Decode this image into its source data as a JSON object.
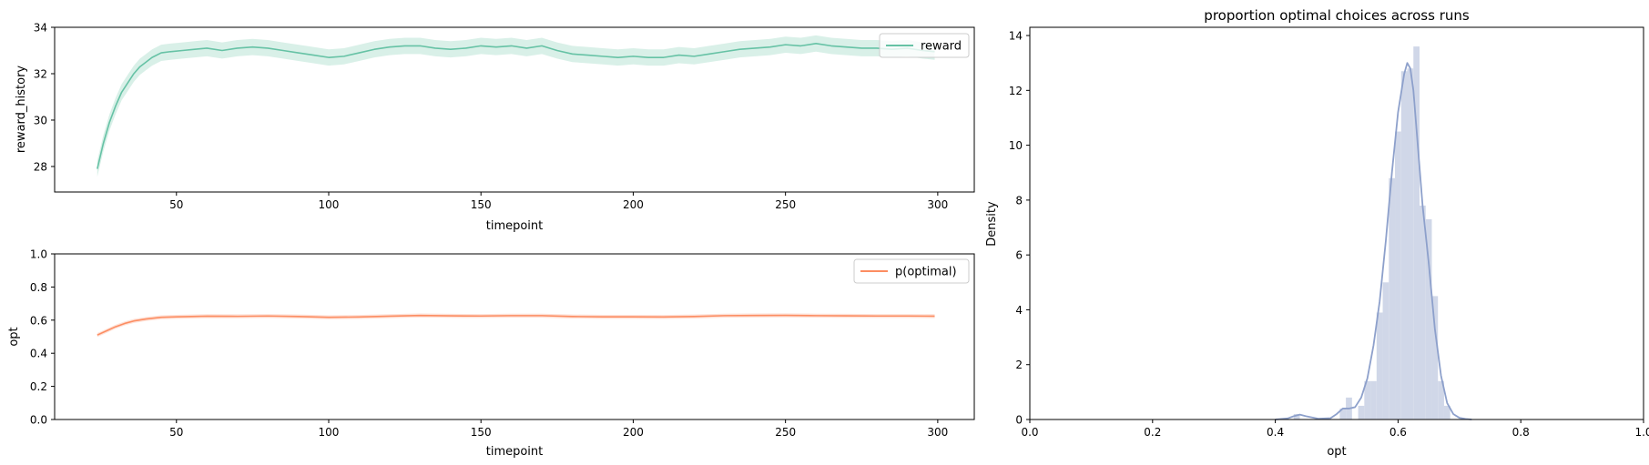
{
  "chart_data": [
    {
      "type": "line",
      "title": "",
      "xlabel": "timepoint",
      "ylabel": "reward_history",
      "xlim": [
        10,
        312
      ],
      "ylim": [
        26.9,
        34
      ],
      "xticks": [
        50,
        100,
        150,
        200,
        250,
        300
      ],
      "yticks": [
        28,
        30,
        32,
        34
      ],
      "legend_position": "upper right",
      "series": [
        {
          "name": "reward",
          "color": "#66c2a5",
          "band": 0.35,
          "x": [
            24,
            26,
            28,
            30,
            32,
            34,
            36,
            38,
            40,
            42,
            45,
            48,
            52,
            56,
            60,
            65,
            70,
            75,
            80,
            85,
            90,
            95,
            100,
            105,
            110,
            115,
            120,
            125,
            130,
            135,
            140,
            145,
            150,
            155,
            160,
            165,
            170,
            175,
            180,
            185,
            190,
            195,
            200,
            205,
            210,
            215,
            220,
            225,
            230,
            235,
            240,
            245,
            250,
            255,
            260,
            265,
            270,
            275,
            280,
            285,
            290,
            295,
            299
          ],
          "y": [
            27.9,
            29.0,
            29.9,
            30.6,
            31.2,
            31.6,
            32.0,
            32.3,
            32.5,
            32.7,
            32.9,
            32.95,
            33.0,
            33.05,
            33.1,
            33.0,
            33.1,
            33.15,
            33.1,
            33.0,
            32.9,
            32.8,
            32.7,
            32.75,
            32.9,
            33.05,
            33.15,
            33.2,
            33.2,
            33.1,
            33.05,
            33.1,
            33.2,
            33.15,
            33.2,
            33.1,
            33.2,
            33.0,
            32.85,
            32.8,
            32.75,
            32.7,
            32.75,
            32.7,
            32.7,
            32.8,
            32.75,
            32.85,
            32.95,
            33.05,
            33.1,
            33.15,
            33.25,
            33.2,
            33.3,
            33.2,
            33.15,
            33.1,
            33.1,
            33.05,
            33.1,
            33.0,
            32.95
          ]
        }
      ]
    },
    {
      "type": "line",
      "title": "",
      "xlabel": "timepoint",
      "ylabel": "opt",
      "xlim": [
        10,
        312
      ],
      "ylim": [
        0,
        1
      ],
      "xticks": [
        50,
        100,
        150,
        200,
        250,
        300
      ],
      "yticks": [
        0.0,
        0.2,
        0.4,
        0.6,
        0.8,
        1.0
      ],
      "ytick_labels": [
        "0.0",
        "0.2",
        "0.4",
        "0.6",
        "0.8",
        "1.0"
      ],
      "legend_position": "upper right",
      "series": [
        {
          "name": "p(optimal)",
          "color": "#fc8d62",
          "band": 0.012,
          "x": [
            24,
            27,
            30,
            33,
            36,
            40,
            45,
            50,
            55,
            60,
            70,
            80,
            90,
            100,
            110,
            120,
            130,
            140,
            150,
            160,
            170,
            180,
            190,
            200,
            210,
            220,
            230,
            240,
            250,
            260,
            270,
            280,
            290,
            299
          ],
          "y": [
            0.51,
            0.535,
            0.56,
            0.58,
            0.595,
            0.607,
            0.617,
            0.62,
            0.622,
            0.624,
            0.623,
            0.625,
            0.622,
            0.617,
            0.619,
            0.624,
            0.628,
            0.626,
            0.625,
            0.627,
            0.627,
            0.622,
            0.62,
            0.62,
            0.619,
            0.622,
            0.627,
            0.628,
            0.629,
            0.627,
            0.626,
            0.625,
            0.625,
            0.624
          ]
        }
      ]
    },
    {
      "type": "bar",
      "title": "proportion optimal choices across runs",
      "xlabel": "opt",
      "ylabel": "Density",
      "xlim": [
        0,
        1
      ],
      "ylim": [
        0,
        14.3
      ],
      "xticks": [
        0.0,
        0.2,
        0.4,
        0.6,
        0.8,
        1.0
      ],
      "xtick_labels": [
        "0.0",
        "0.2",
        "0.4",
        "0.6",
        "0.8",
        "1.0"
      ],
      "yticks": [
        0,
        2,
        4,
        6,
        8,
        10,
        12,
        14
      ],
      "bar_color": "#d0d7e8",
      "kde_color": "#8da0cb",
      "bins": [
        {
          "x0": 0.43,
          "x1": 0.44,
          "value": 0.2
        },
        {
          "x0": 0.505,
          "x1": 0.515,
          "value": 0.4
        },
        {
          "x0": 0.515,
          "x1": 0.525,
          "value": 0.8
        },
        {
          "x0": 0.535,
          "x1": 0.545,
          "value": 0.5
        },
        {
          "x0": 0.545,
          "x1": 0.555,
          "value": 1.4
        },
        {
          "x0": 0.555,
          "x1": 0.565,
          "value": 1.4
        },
        {
          "x0": 0.565,
          "x1": 0.575,
          "value": 3.9
        },
        {
          "x0": 0.575,
          "x1": 0.585,
          "value": 5.0
        },
        {
          "x0": 0.585,
          "x1": 0.595,
          "value": 8.8
        },
        {
          "x0": 0.595,
          "x1": 0.605,
          "value": 10.5
        },
        {
          "x0": 0.605,
          "x1": 0.615,
          "value": 12.7
        },
        {
          "x0": 0.615,
          "x1": 0.625,
          "value": 12.8
        },
        {
          "x0": 0.625,
          "x1": 0.635,
          "value": 13.6
        },
        {
          "x0": 0.635,
          "x1": 0.645,
          "value": 7.8
        },
        {
          "x0": 0.645,
          "x1": 0.655,
          "value": 7.3
        },
        {
          "x0": 0.655,
          "x1": 0.665,
          "value": 4.5
        },
        {
          "x0": 0.665,
          "x1": 0.675,
          "value": 1.4
        },
        {
          "x0": 0.675,
          "x1": 0.685,
          "value": 0.5
        }
      ],
      "kde": {
        "x": [
          0.4,
          0.42,
          0.43,
          0.44,
          0.45,
          0.47,
          0.49,
          0.5,
          0.51,
          0.52,
          0.53,
          0.54,
          0.55,
          0.56,
          0.57,
          0.58,
          0.59,
          0.6,
          0.61,
          0.615,
          0.62,
          0.625,
          0.63,
          0.64,
          0.65,
          0.66,
          0.67,
          0.68,
          0.69,
          0.7,
          0.71,
          0.72
        ],
        "y": [
          0.0,
          0.04,
          0.12,
          0.18,
          0.12,
          0.03,
          0.05,
          0.2,
          0.4,
          0.4,
          0.45,
          0.8,
          1.5,
          2.7,
          4.3,
          6.5,
          9.0,
          11.2,
          12.6,
          13.0,
          12.8,
          12.0,
          10.6,
          7.8,
          5.7,
          3.3,
          1.6,
          0.6,
          0.2,
          0.06,
          0.02,
          0.0
        ]
      }
    }
  ]
}
